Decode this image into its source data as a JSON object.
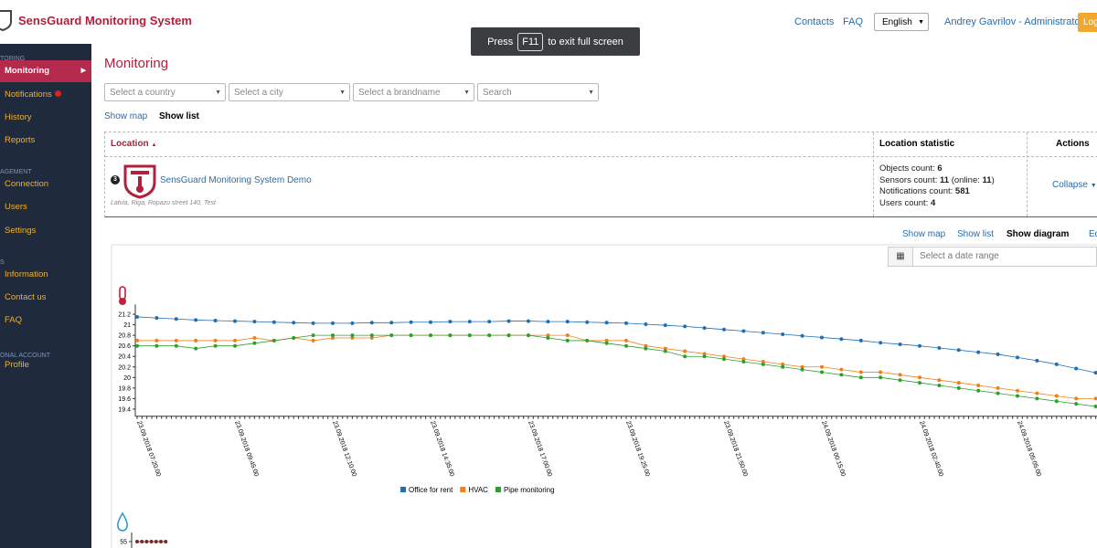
{
  "header": {
    "brand": "SensGuard Monitoring System",
    "links": [
      "Contacts",
      "FAQ"
    ],
    "language": "English",
    "user": "Andrey Gavrilov - Administrator",
    "button": "Log"
  },
  "toast": {
    "before": "Press",
    "key": "F11",
    "after": "to exit full screen"
  },
  "sidebar": [
    {
      "section": "TORING",
      "items": [
        "Monitoring",
        "Notifications",
        "History",
        "Reports"
      ]
    },
    {
      "section": "AGEMENT",
      "items": [
        "Connection",
        "Users",
        "Settings"
      ]
    },
    {
      "section": "S",
      "items": [
        "Information",
        "Contact us",
        "FAQ"
      ]
    },
    {
      "section": "ONAL ACCOUNT",
      "items": [
        "Profile"
      ]
    }
  ],
  "main": {
    "title": "Monitoring",
    "filters": [
      "Select a country",
      "Select a city",
      "Select a brandname",
      "Search"
    ],
    "views": [
      "Show map",
      "Show list"
    ],
    "table": {
      "headers": [
        "Location",
        "Location statistic",
        "Actions"
      ],
      "row": {
        "number": "3",
        "name": "SensGuard Monitoring System Demo",
        "address": "Latvia, Riga, Ropazu street 140, Test",
        "stats": [
          {
            "label": "Objects count:",
            "value": 6
          },
          {
            "label": "Sensors count:",
            "value": 11,
            "online_label": "(online:",
            "online": 11,
            "close": ")"
          },
          {
            "label": "Notifications count:",
            "value": 581
          },
          {
            "label": "Users count:",
            "value": 4
          }
        ],
        "action": "Collapse"
      }
    },
    "subviews": [
      "Show map",
      "Show list",
      "Show diagram",
      "Ed"
    ],
    "date_range": "Select a date range"
  },
  "chart_data": [
    {
      "type": "line",
      "categories": [
        "23.09.2018 07:20:00",
        null,
        null,
        null,
        null,
        "23.09.2018 09:45:00",
        null,
        null,
        null,
        null,
        "23.09.2018 12:10:00",
        null,
        null,
        null,
        null,
        "23.09.2018 14:35:00",
        null,
        null,
        null,
        null,
        "23.09.2018 17:00:00",
        null,
        null,
        null,
        null,
        "23.09.2018 19:25:00",
        null,
        null,
        null,
        null,
        "23.09.2018 21:50:00",
        null,
        null,
        null,
        null,
        "24.09.2018 00:15:00",
        null,
        null,
        null,
        null,
        "24.09.2018 02:40:00",
        null,
        null,
        null,
        null,
        "24.09.2018 05:05:00",
        null,
        null,
        null,
        null
      ],
      "series": [
        {
          "name": "Office for rent",
          "color": "#1f6fb5",
          "values": [
            21.15,
            21.13,
            21.11,
            21.09,
            21.08,
            21.07,
            21.06,
            21.05,
            21.04,
            21.03,
            21.03,
            21.03,
            21.04,
            21.04,
            21.05,
            21.05,
            21.06,
            21.06,
            21.06,
            21.07,
            21.07,
            21.06,
            21.06,
            21.05,
            21.04,
            21.03,
            21.01,
            20.99,
            20.97,
            20.94,
            20.91,
            20.88,
            20.85,
            20.82,
            20.79,
            20.76,
            20.73,
            20.7,
            20.66,
            20.63,
            20.6,
            20.56,
            20.52,
            20.48,
            20.44,
            20.38,
            20.32,
            20.25,
            20.17,
            20.09
          ]
        },
        {
          "name": "HVAC",
          "color": "#f07f17",
          "values": [
            20.7,
            20.7,
            20.7,
            20.7,
            20.7,
            20.7,
            20.75,
            20.7,
            20.75,
            20.7,
            20.75,
            20.75,
            20.75,
            20.8,
            20.8,
            20.8,
            20.8,
            20.8,
            20.8,
            20.8,
            20.8,
            20.8,
            20.8,
            20.7,
            20.7,
            20.7,
            20.6,
            20.55,
            20.5,
            20.45,
            20.4,
            20.35,
            20.3,
            20.25,
            20.2,
            20.2,
            20.15,
            20.1,
            20.1,
            20.05,
            20.0,
            19.95,
            19.9,
            19.85,
            19.8,
            19.75,
            19.7,
            19.65,
            19.6,
            19.6
          ]
        },
        {
          "name": "Pipe monitoring",
          "color": "#2ca02c",
          "values": [
            20.6,
            20.6,
            20.6,
            20.55,
            20.6,
            20.6,
            20.65,
            20.7,
            20.75,
            20.8,
            20.8,
            20.8,
            20.8,
            20.8,
            20.8,
            20.8,
            20.8,
            20.8,
            20.8,
            20.8,
            20.8,
            20.75,
            20.7,
            20.7,
            20.65,
            20.6,
            20.55,
            20.5,
            20.4,
            20.4,
            20.35,
            20.3,
            20.25,
            20.2,
            20.15,
            20.1,
            20.05,
            20.0,
            20.0,
            19.95,
            19.9,
            19.85,
            19.8,
            19.75,
            19.7,
            19.65,
            19.6,
            19.55,
            19.5,
            19.45
          ]
        }
      ],
      "ylim": [
        19.3,
        21.3
      ],
      "yticks": [
        19.4,
        19.6,
        19.8,
        20,
        20.2,
        20.4,
        20.6,
        20.8,
        21,
        21.2
      ]
    },
    {
      "type": "line",
      "series": [
        {
          "color": "#7a2a2a",
          "values": [
            55,
            55,
            55,
            55,
            55,
            55,
            55
          ]
        }
      ],
      "ylim": [
        54,
        56
      ],
      "yticks": [
        55
      ]
    }
  ]
}
